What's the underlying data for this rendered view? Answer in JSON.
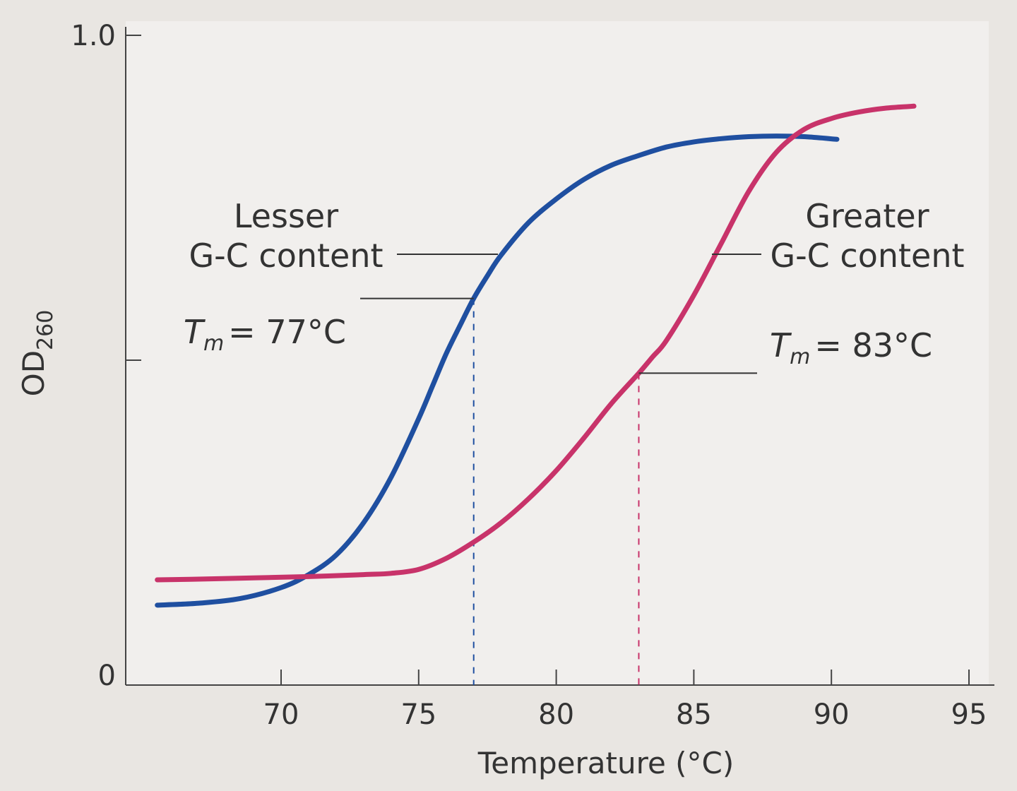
{
  "chart_data": {
    "type": "line",
    "xlabel": "Temperature (°C)",
    "ylabel": "OD",
    "ylabel_sub": "260",
    "xlim": [
      64.5,
      96
    ],
    "ylim": [
      0,
      1.0
    ],
    "x_ticks": [
      70,
      75,
      80,
      85,
      90,
      95
    ],
    "y_ticks": [
      0,
      0.5,
      1.0
    ],
    "y_tick_labels": [
      "0",
      "",
      "1.0"
    ],
    "grid": false,
    "series": [
      {
        "name": "Lesser G-C content",
        "color": "#1f4fa0",
        "tm": 77,
        "x": [
          65.5,
          67,
          68.5,
          70,
          71,
          72,
          73,
          74,
          75,
          75.5,
          76,
          76.5,
          77,
          77.5,
          78,
          79,
          80,
          81,
          82,
          83,
          84,
          85,
          86,
          87,
          88,
          89,
          90.2
        ],
        "y": [
          0.123,
          0.126,
          0.133,
          0.15,
          0.17,
          0.2,
          0.25,
          0.32,
          0.41,
          0.46,
          0.51,
          0.553,
          0.595,
          0.63,
          0.662,
          0.712,
          0.748,
          0.778,
          0.8,
          0.815,
          0.828,
          0.836,
          0.841,
          0.844,
          0.845,
          0.844,
          0.84
        ]
      },
      {
        "name": "Greater G-C content",
        "color": "#c8336a",
        "tm": 83,
        "x": [
          65.5,
          67,
          69,
          71,
          73,
          74,
          75,
          76,
          77,
          78,
          79,
          80,
          81,
          82,
          83,
          83.5,
          84,
          85,
          86,
          87,
          88,
          89,
          90,
          91,
          92,
          93
        ],
        "y": [
          0.162,
          0.163,
          0.165,
          0.167,
          0.17,
          0.172,
          0.178,
          0.195,
          0.22,
          0.25,
          0.287,
          0.33,
          0.38,
          0.433,
          0.48,
          0.505,
          0.53,
          0.6,
          0.68,
          0.76,
          0.82,
          0.855,
          0.872,
          0.882,
          0.888,
          0.891
        ]
      }
    ],
    "annotations": [
      {
        "line1": "Lesser",
        "line2": "G-C content",
        "tm_symbol": "T",
        "tm_sub": "m",
        "tm_value": "= 77°C"
      },
      {
        "line1": "Greater",
        "line2": "G-C content",
        "tm_symbol": "T",
        "tm_sub": "m",
        "tm_value": "= 83°C"
      }
    ]
  }
}
